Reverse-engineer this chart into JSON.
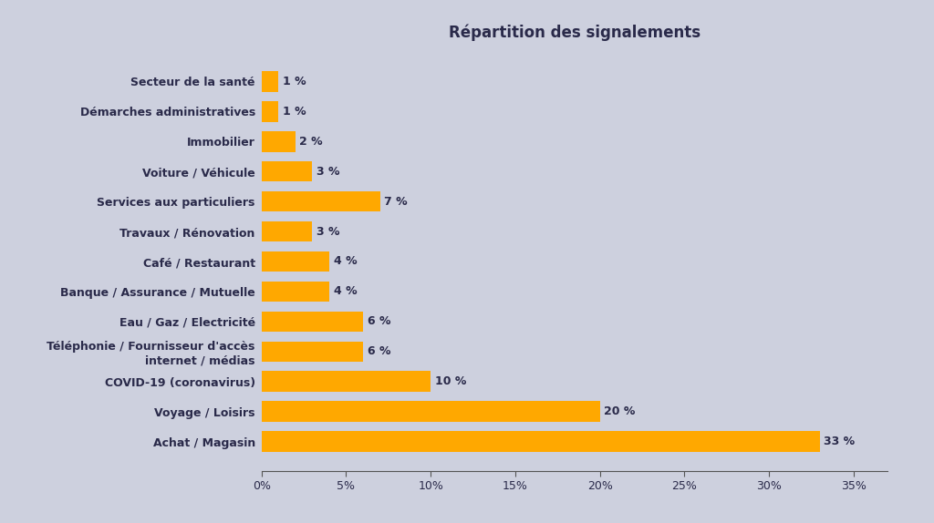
{
  "title": "Répartition des signalements",
  "categories": [
    "Achat / Magasin",
    "Voyage / Loisirs",
    "COVID-19 (coronavirus)",
    "Téléphonie / Fournisseur d'accès\ninternet / médias",
    "Eau / Gaz / Electricité",
    "Banque / Assurance / Mutuelle",
    "Café / Restaurant",
    "Travaux / Rénovation",
    "Services aux particuliers",
    "Voiture / Véhicule",
    "Immobilier",
    "Démarches administratives",
    "Secteur de la santé"
  ],
  "values": [
    33,
    20,
    10,
    6,
    6,
    4,
    4,
    3,
    7,
    3,
    2,
    1,
    1
  ],
  "bar_color": "#FFA800",
  "background_color": "#cdd0de",
  "text_color": "#2a2a4a",
  "title_fontsize": 12,
  "label_fontsize": 9,
  "tick_fontsize": 9,
  "value_fontsize": 9,
  "xlim": [
    0,
    37
  ],
  "xticks": [
    0,
    5,
    10,
    15,
    20,
    25,
    30,
    35
  ],
  "xtick_labels": [
    "0%",
    "5%",
    "10%",
    "15%",
    "20%",
    "25%",
    "30%",
    "35%"
  ]
}
